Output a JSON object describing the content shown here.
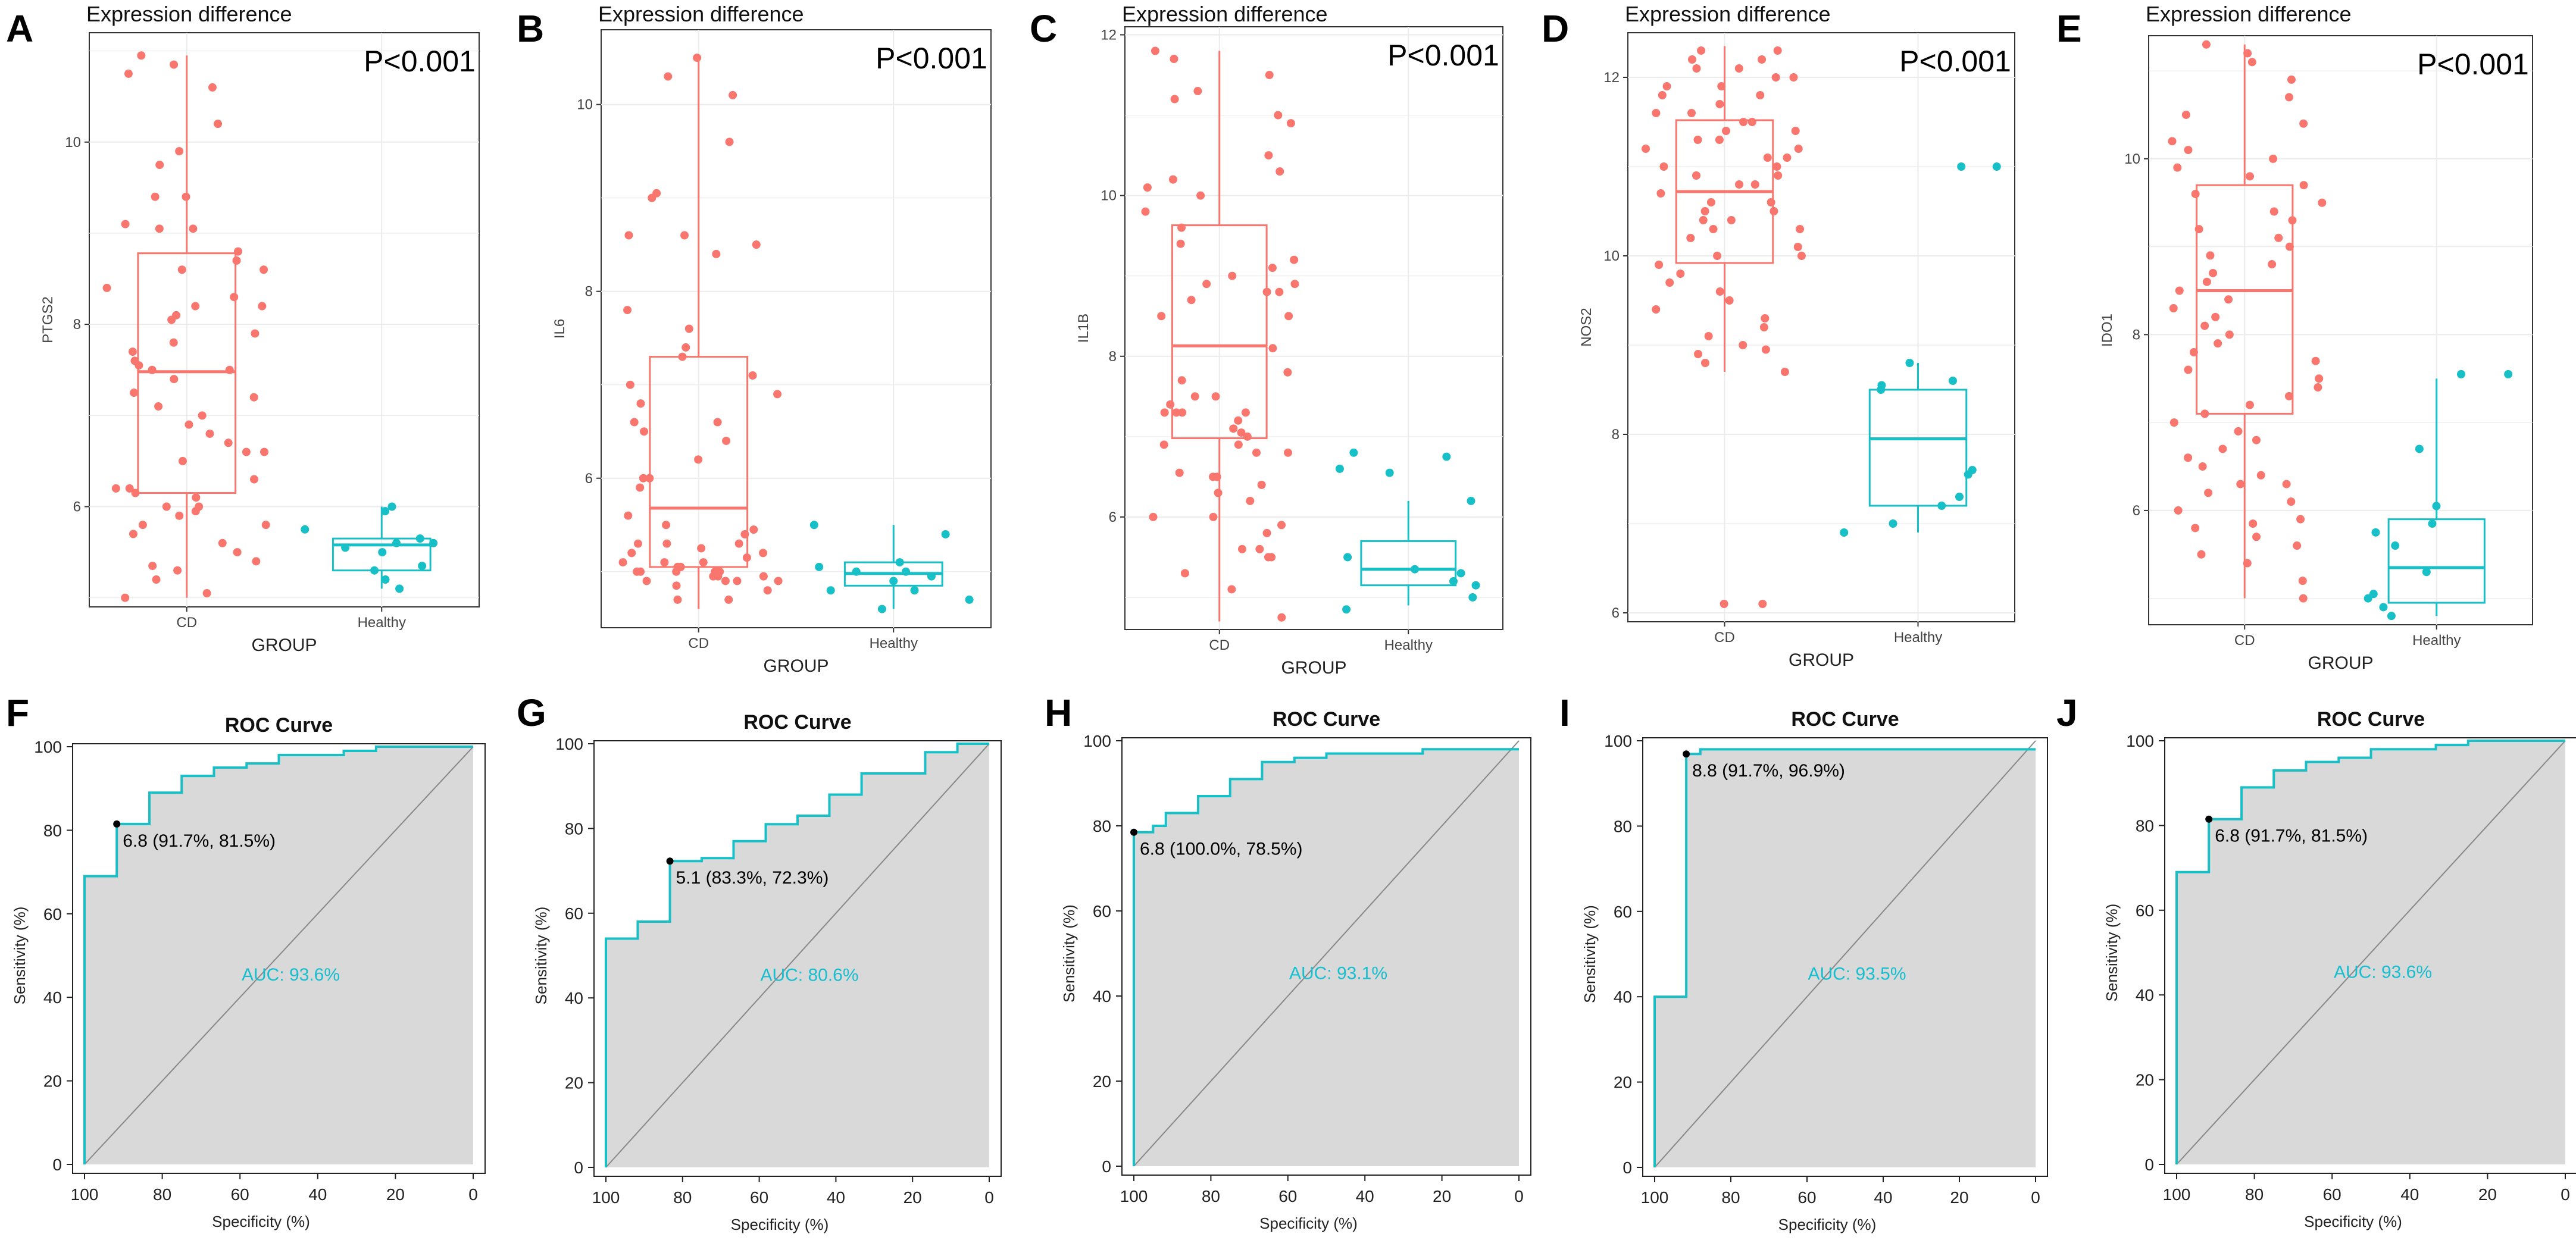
{
  "colors": {
    "cd": "#f8766d",
    "healthy": "#17bfc7",
    "roc_line": "#17bfc7",
    "roc_fill": "#d9d9d9",
    "grid": "#ebebeb"
  },
  "chart_data": [
    {
      "panel": "A",
      "type": "scatter",
      "subtype": "boxplot-jitter",
      "title": "Expression difference",
      "pvalue": "P<0.001",
      "xlabel": "GROUP",
      "ylabel": "PTGS2",
      "categories": [
        "CD",
        "Healthy"
      ],
      "ylim": [
        4.9,
        11.2
      ],
      "yticks": [
        6,
        8,
        10
      ],
      "box": [
        {
          "group": "CD",
          "min": 5.0,
          "q1": 6.15,
          "median": 7.48,
          "q3": 8.78,
          "max": 10.95
        },
        {
          "group": "Healthy",
          "min": 5.1,
          "q1": 5.3,
          "median": 5.58,
          "q3": 5.65,
          "max": 6.0
        }
      ],
      "points": {
        "CD": [
          6.3,
          6.2,
          6.1,
          6.0,
          5.9,
          5.05,
          5.7,
          9.05,
          9.05,
          8.2,
          8.8,
          6.15,
          5.8,
          5.5,
          5.3,
          7.9,
          8.1,
          6.8,
          7.1,
          6.7,
          5.95,
          10.6,
          10.85,
          10.75,
          9.75,
          9.4,
          8.4,
          7.7,
          7.4,
          6.6,
          5.6,
          5.35,
          7.8,
          7.55,
          6.0,
          8.6,
          7.2,
          8.6,
          7.5,
          7.0,
          5.4,
          9.9,
          10.95,
          10.2,
          8.3,
          7.5,
          6.9,
          6.2,
          5.0,
          9.4,
          9.1,
          8.7,
          8.2,
          8.05,
          6.6,
          6.5,
          5.8,
          5.2,
          7.6,
          7.25
        ],
        "Healthy": [
          5.65,
          6.0,
          5.3,
          5.55,
          5.6,
          5.35,
          5.5,
          5.2,
          5.95,
          5.75,
          5.6,
          5.1
        ]
      }
    },
    {
      "panel": "B",
      "type": "scatter",
      "subtype": "boxplot-jitter",
      "title": "Expression difference",
      "pvalue": "P<0.001",
      "xlabel": "GROUP",
      "ylabel": "IL6",
      "categories": [
        "CD",
        "Healthy"
      ],
      "ylim": [
        4.4,
        10.8
      ],
      "yticks": [
        6,
        8,
        10
      ],
      "box": [
        {
          "group": "CD",
          "min": 4.6,
          "q1": 5.05,
          "median": 5.68,
          "q3": 7.3,
          "max": 10.5
        },
        {
          "group": "Healthy",
          "min": 4.6,
          "q1": 4.85,
          "median": 4.98,
          "q3": 5.1,
          "max": 5.5
        }
      ],
      "points": {
        "CD": [
          7.4,
          5.5,
          5.2,
          5.0,
          4.95,
          4.7,
          5.3,
          5.45,
          5.6,
          5.1,
          4.9,
          5.0,
          5.9,
          8.6,
          9.0,
          10.5,
          7.6,
          6.5,
          5.1,
          5.0,
          4.95,
          5.4,
          6.0,
          4.9,
          6.6,
          6.9,
          7.0,
          5.15,
          5.05,
          5.3,
          7.1,
          6.2,
          6.0,
          5.05,
          9.6,
          4.8,
          6.8,
          6.4,
          5.0,
          4.7,
          4.9,
          5.2,
          7.8,
          9.05,
          8.6,
          5.3,
          5.05,
          7.3,
          8.4,
          10.3,
          5.25,
          5.0,
          4.95,
          8.5,
          10.1,
          5.0,
          6.6,
          5.1,
          4.9,
          4.85
        ],
        "Healthy": [
          5.4,
          5.1,
          5.05,
          4.8,
          5.0,
          4.7,
          4.6,
          5.5,
          4.9,
          5.0,
          4.95,
          4.8
        ]
      }
    },
    {
      "panel": "C",
      "type": "scatter",
      "subtype": "boxplot-jitter",
      "title": "Expression difference",
      "pvalue": "P<0.001",
      "xlabel": "GROUP",
      "ylabel": "IL1B",
      "categories": [
        "CD",
        "Healthy"
      ],
      "ylim": [
        4.6,
        12.1
      ],
      "yticks": [
        6,
        8,
        10,
        12
      ],
      "box": [
        {
          "group": "CD",
          "min": 4.7,
          "q1": 6.98,
          "median": 8.13,
          "q3": 9.63,
          "max": 11.8
        },
        {
          "group": "Healthy",
          "min": 4.9,
          "q1": 5.15,
          "median": 5.35,
          "q3": 5.7,
          "max": 6.2
        }
      ],
      "points": {
        "CD": [
          5.5,
          10.1,
          9.8,
          11.5,
          11.8,
          7.3,
          6.9,
          7.3,
          8.9,
          6.8,
          8.1,
          6.2,
          11.0,
          6.3,
          5.5,
          8.7,
          8.8,
          7.0,
          7.8,
          9.0,
          10.3,
          11.7,
          10.2,
          7.2,
          6.0,
          4.75,
          8.8,
          9.1,
          9.4,
          7.5,
          6.9,
          5.1,
          6.5,
          8.5,
          9.6,
          10.9,
          9.2,
          7.3,
          5.9,
          5.3,
          7.7,
          6.4,
          6.55,
          8.9,
          10.5,
          11.2,
          10.0,
          8.5,
          6.5,
          7.4,
          5.8,
          5.6,
          7.1,
          6.8,
          6.0,
          7.5,
          7.3,
          11.3,
          5.6,
          7.05
        ],
        "Healthy": [
          5.5,
          6.2,
          5.35,
          5.2,
          6.55,
          6.75,
          6.6,
          5.3,
          5.15,
          6.8,
          5.0,
          4.85
        ]
      }
    },
    {
      "panel": "D",
      "type": "scatter",
      "subtype": "boxplot-jitter",
      "title": "Expression difference",
      "pvalue": "P<0.001",
      "xlabel": "GROUP",
      "ylabel": "NOS2",
      "categories": [
        "CD",
        "Healthy"
      ],
      "ylim": [
        5.9,
        12.5
      ],
      "yticks": [
        6,
        8,
        10,
        12
      ],
      "box": [
        {
          "group": "CD",
          "min": 8.7,
          "q1": 9.92,
          "median": 10.72,
          "q3": 11.52,
          "max": 12.35
        },
        {
          "group": "Healthy",
          "min": 6.9,
          "q1": 7.2,
          "median": 7.95,
          "q3": 8.5,
          "max": 8.8
        }
      ],
      "points": {
        "CD": [
          10.2,
          10.6,
          11.4,
          11.8,
          12.1,
          10.9,
          9.5,
          9.1,
          8.9,
          11.1,
          11.6,
          12.0,
          12.3,
          10.0,
          10.5,
          11.3,
          11.9,
          9.8,
          6.1,
          10.7,
          11.2,
          11.5,
          12.2,
          9.6,
          9.0,
          10.3,
          10.8,
          11.0,
          12.0,
          11.7,
          10.4,
          9.3,
          8.8,
          10.1,
          11.5,
          11.8,
          12.3,
          11.3,
          10.9,
          9.7,
          9.2,
          10.6,
          10.0,
          11.1,
          8.7,
          10.5,
          11.4,
          6.1,
          10.8,
          11.6,
          12.2,
          11.0,
          10.3,
          9.9,
          12.1,
          11.9,
          11.2,
          10.4,
          9.4,
          8.95
        ],
        "Healthy": [
          11.0,
          11.0,
          7.55,
          8.55,
          8.5,
          7.3,
          8.8,
          8.6,
          6.9,
          7.0,
          7.6,
          7.2
        ]
      }
    },
    {
      "panel": "E",
      "type": "scatter",
      "subtype": "boxplot-jitter",
      "title": "Expression difference",
      "pvalue": "P<0.001",
      "xlabel": "GROUP",
      "ylabel": "IDO1",
      "categories": [
        "CD",
        "Healthy"
      ],
      "ylim": [
        4.7,
        11.4
      ],
      "yticks": [
        6,
        8,
        10
      ],
      "box": [
        {
          "group": "CD",
          "min": 5.0,
          "q1": 7.1,
          "median": 8.5,
          "q3": 9.7,
          "max": 11.3
        },
        {
          "group": "Healthy",
          "min": 4.8,
          "q1": 4.95,
          "median": 5.35,
          "q3": 5.9,
          "max": 7.5
        }
      ],
      "points": {
        "CD": [
          11.3,
          9.8,
          9.5,
          9.2,
          8.9,
          8.6,
          8.3,
          8.0,
          7.8,
          7.6,
          7.3,
          7.0,
          6.8,
          6.6,
          6.4,
          6.2,
          6.0,
          5.8,
          5.6,
          5.4,
          5.0,
          10.5,
          10.2,
          10.0,
          9.9,
          9.7,
          9.3,
          9.0,
          8.8,
          8.5,
          8.4,
          8.1,
          7.9,
          7.7,
          7.5,
          7.2,
          6.9,
          6.7,
          6.5,
          6.3,
          6.1,
          5.9,
          5.7,
          5.5,
          11.2,
          11.1,
          10.9,
          10.7,
          10.4,
          10.1,
          9.6,
          9.4,
          9.1,
          8.7,
          8.2,
          7.4,
          7.1,
          6.3,
          5.85,
          5.2
        ],
        "Healthy": [
          7.55,
          7.55,
          6.05,
          6.7,
          5.85,
          5.6,
          5.75,
          5.3,
          5.05,
          4.9,
          5.0,
          4.8
        ]
      }
    },
    {
      "panel": "F",
      "type": "line",
      "subtype": "roc",
      "title": "ROC Curve",
      "xlabel": "Specificity (%)",
      "ylabel": "Sensitivity (%)",
      "xlim": [
        100,
        0
      ],
      "ylim": [
        0,
        100
      ],
      "ticks": [
        100,
        80,
        60,
        40,
        20,
        0
      ],
      "auc": "AUC: 93.6%",
      "threshold_label": "6.8 (91.7%, 81.5%)",
      "threshold_point": {
        "specificity": 91.7,
        "sensitivity": 81.5
      },
      "curve": [
        [
          100,
          0
        ],
        [
          100,
          69
        ],
        [
          91.7,
          69
        ],
        [
          91.7,
          81.5
        ],
        [
          83.3,
          81.5
        ],
        [
          83.3,
          89
        ],
        [
          75,
          89
        ],
        [
          75,
          93
        ],
        [
          66.7,
          93
        ],
        [
          66.7,
          95
        ],
        [
          58.3,
          95
        ],
        [
          58.3,
          96
        ],
        [
          50,
          96
        ],
        [
          50,
          98
        ],
        [
          33.3,
          98
        ],
        [
          33.3,
          99
        ],
        [
          25,
          99
        ],
        [
          25,
          100
        ],
        [
          0,
          100
        ]
      ]
    },
    {
      "panel": "G",
      "type": "line",
      "subtype": "roc",
      "title": "ROC Curve",
      "xlabel": "Specificity (%)",
      "ylabel": "Sensitivity (%)",
      "xlim": [
        100,
        0
      ],
      "ylim": [
        0,
        100
      ],
      "ticks": [
        100,
        80,
        60,
        40,
        20,
        0
      ],
      "auc": "AUC: 80.6%",
      "threshold_label": "5.1 (83.3%, 72.3%)",
      "threshold_point": {
        "specificity": 83.3,
        "sensitivity": 72.3
      },
      "curve": [
        [
          100,
          0
        ],
        [
          100,
          54
        ],
        [
          91.7,
          54
        ],
        [
          91.7,
          58
        ],
        [
          83.3,
          58
        ],
        [
          83.3,
          72.3
        ],
        [
          75,
          72.3
        ],
        [
          75,
          73
        ],
        [
          66.7,
          73
        ],
        [
          66.7,
          77
        ],
        [
          58.3,
          77
        ],
        [
          58.3,
          81
        ],
        [
          50,
          81
        ],
        [
          50,
          83
        ],
        [
          41.7,
          83
        ],
        [
          41.7,
          88
        ],
        [
          33.3,
          88
        ],
        [
          33.3,
          93
        ],
        [
          16.7,
          93
        ],
        [
          16.7,
          98
        ],
        [
          8.3,
          98
        ],
        [
          8.3,
          100
        ],
        [
          0,
          100
        ]
      ]
    },
    {
      "panel": "H",
      "type": "line",
      "subtype": "roc",
      "title": "ROC Curve",
      "xlabel": "Specificity (%)",
      "ylabel": "Sensitivity (%)",
      "xlim": [
        100,
        0
      ],
      "ylim": [
        0,
        100
      ],
      "ticks": [
        100,
        80,
        60,
        40,
        20,
        0
      ],
      "auc": "AUC: 93.1%",
      "threshold_label": "6.8 (100.0%, 78.5%)",
      "threshold_point": {
        "specificity": 100.0,
        "sensitivity": 78.5
      },
      "curve": [
        [
          100,
          0
        ],
        [
          100,
          78.5
        ],
        [
          95,
          78.5
        ],
        [
          95,
          80
        ],
        [
          91.7,
          80
        ],
        [
          91.7,
          83
        ],
        [
          83.3,
          83
        ],
        [
          83.3,
          87
        ],
        [
          75,
          87
        ],
        [
          75,
          91
        ],
        [
          66.7,
          91
        ],
        [
          66.7,
          95
        ],
        [
          58.3,
          95
        ],
        [
          58.3,
          96
        ],
        [
          50,
          96
        ],
        [
          50,
          97
        ],
        [
          25,
          97
        ],
        [
          25,
          98
        ],
        [
          0,
          98
        ]
      ]
    },
    {
      "panel": "I",
      "type": "line",
      "subtype": "roc",
      "title": "ROC Curve",
      "xlabel": "Specificity (%)",
      "ylabel": "Sensitivity (%)",
      "xlim": [
        100,
        0
      ],
      "ylim": [
        0,
        100
      ],
      "ticks": [
        100,
        80,
        60,
        40,
        20,
        0
      ],
      "auc": "AUC: 93.5%",
      "threshold_label": "8.8 (91.7%, 96.9%)",
      "threshold_point": {
        "specificity": 91.7,
        "sensitivity": 96.9
      },
      "curve": [
        [
          100,
          0
        ],
        [
          100,
          40
        ],
        [
          91.7,
          40
        ],
        [
          91.7,
          96.9
        ],
        [
          88,
          96.9
        ],
        [
          88,
          98
        ],
        [
          0,
          98
        ]
      ]
    },
    {
      "panel": "J",
      "type": "line",
      "subtype": "roc",
      "title": "ROC Curve",
      "xlabel": "Specificity (%)",
      "ylabel": "Sensitivity (%)",
      "xlim": [
        100,
        0
      ],
      "ylim": [
        0,
        100
      ],
      "ticks": [
        100,
        80,
        60,
        40,
        20,
        0
      ],
      "auc": "AUC: 93.6%",
      "threshold_label": "6.8 (91.7%, 81.5%)",
      "threshold_point": {
        "specificity": 91.7,
        "sensitivity": 81.5
      },
      "curve": [
        [
          100,
          0
        ],
        [
          100,
          69
        ],
        [
          91.7,
          69
        ],
        [
          91.7,
          81.5
        ],
        [
          83.3,
          81.5
        ],
        [
          83.3,
          89
        ],
        [
          75,
          89
        ],
        [
          75,
          93
        ],
        [
          66.7,
          93
        ],
        [
          66.7,
          95
        ],
        [
          58.3,
          95
        ],
        [
          58.3,
          96
        ],
        [
          50,
          96
        ],
        [
          50,
          98
        ],
        [
          33.3,
          98
        ],
        [
          33.3,
          99
        ],
        [
          25,
          99
        ],
        [
          25,
          100
        ],
        [
          0,
          100
        ]
      ]
    }
  ]
}
